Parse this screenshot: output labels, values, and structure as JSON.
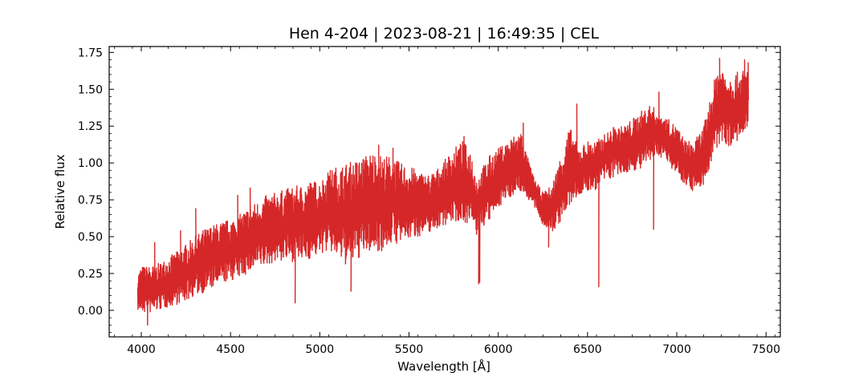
{
  "chart_data": {
    "type": "line",
    "title": "Hen 4-204 | 2023-08-21 | 16:49:35 | CEL",
    "xlabel": "Wavelength [Å]",
    "ylabel": "Relative flux",
    "xlim": [
      3820,
      7580
    ],
    "ylim": [
      -0.18,
      1.79
    ],
    "xticks": [
      4000,
      4500,
      5000,
      5500,
      6000,
      6500,
      7000,
      7500
    ],
    "yticks": [
      0.0,
      0.25,
      0.5,
      0.75,
      1.0,
      1.25,
      1.5,
      1.75
    ],
    "xtick_labels": [
      "4000",
      "4500",
      "5000",
      "5500",
      "6000",
      "6500",
      "7000",
      "7500"
    ],
    "ytick_labels": [
      "0.00",
      "0.25",
      "0.50",
      "0.75",
      "1.00",
      "1.25",
      "1.50",
      "1.75"
    ],
    "grid": false,
    "line_color": "#d62728",
    "series": [
      {
        "x": [
          3980,
          4000,
          4050,
          4100,
          4150,
          4200,
          4250,
          4300,
          4350,
          4400,
          4450,
          4500,
          4550,
          4600,
          4650,
          4700,
          4750,
          4800,
          4850,
          4900,
          4950,
          5000,
          5050,
          5100,
          5150,
          5200,
          5250,
          5300,
          5350,
          5400,
          5450,
          5500,
          5550,
          5600,
          5650,
          5700,
          5750,
          5800,
          5850,
          5880,
          5900,
          5950,
          6000,
          6050,
          6100,
          6130,
          6150,
          6200,
          6250,
          6300,
          6350,
          6400,
          6450,
          6500,
          6550,
          6600,
          6650,
          6700,
          6750,
          6800,
          6850,
          6900,
          6950,
          7000,
          7050,
          7100,
          7150,
          7200,
          7230,
          7260,
          7300,
          7350,
          7400
        ],
        "low": [
          0.0,
          -0.02,
          -0.02,
          0.0,
          0.02,
          0.04,
          0.06,
          0.1,
          0.12,
          0.15,
          0.18,
          0.2,
          0.22,
          0.25,
          0.28,
          0.3,
          0.33,
          0.33,
          0.33,
          0.33,
          0.35,
          0.38,
          0.4,
          0.35,
          0.3,
          0.33,
          0.38,
          0.4,
          0.4,
          0.45,
          0.45,
          0.48,
          0.5,
          0.52,
          0.55,
          0.58,
          0.6,
          0.6,
          0.58,
          0.5,
          0.55,
          0.6,
          0.7,
          0.75,
          0.8,
          0.8,
          0.78,
          0.7,
          0.58,
          0.52,
          0.6,
          0.7,
          0.78,
          0.8,
          0.82,
          0.88,
          0.9,
          0.92,
          0.95,
          0.95,
          1.0,
          1.05,
          1.0,
          0.92,
          0.85,
          0.8,
          0.85,
          1.0,
          1.1,
          1.15,
          1.1,
          1.15,
          1.2
        ],
        "high": [
          0.25,
          0.3,
          0.3,
          0.32,
          0.36,
          0.4,
          0.45,
          0.5,
          0.55,
          0.58,
          0.6,
          0.62,
          0.65,
          0.7,
          0.74,
          0.78,
          0.8,
          0.82,
          0.84,
          0.85,
          0.88,
          0.88,
          0.95,
          0.98,
          1.0,
          1.02,
          1.05,
          1.08,
          1.05,
          1.05,
          1.0,
          0.98,
          0.95,
          0.92,
          0.95,
          1.02,
          1.1,
          1.15,
          1.08,
          0.9,
          0.95,
          1.05,
          1.1,
          1.15,
          1.2,
          1.22,
          1.1,
          0.9,
          0.8,
          0.85,
          1.05,
          1.25,
          1.1,
          1.15,
          1.15,
          1.2,
          1.25,
          1.25,
          1.3,
          1.35,
          1.4,
          1.35,
          1.3,
          1.25,
          1.15,
          1.15,
          1.25,
          1.5,
          1.68,
          1.65,
          1.6,
          1.62,
          1.65
        ]
      }
    ],
    "spikes": [
      {
        "x": 4035,
        "y": -0.1
      },
      {
        "x": 4075,
        "y": 0.46
      },
      {
        "x": 4220,
        "y": 0.54
      },
      {
        "x": 4305,
        "y": 0.69
      },
      {
        "x": 4540,
        "y": 0.78
      },
      {
        "x": 4610,
        "y": 0.83
      },
      {
        "x": 4862,
        "y": 0.05
      },
      {
        "x": 5052,
        "y": 0.91
      },
      {
        "x": 5175,
        "y": 0.13
      },
      {
        "x": 5270,
        "y": 0.98
      },
      {
        "x": 5330,
        "y": 1.12
      },
      {
        "x": 5410,
        "y": 1.1
      },
      {
        "x": 5808,
        "y": 1.18
      },
      {
        "x": 5890,
        "y": 0.18
      },
      {
        "x": 5896,
        "y": 0.19
      },
      {
        "x": 6140,
        "y": 1.27
      },
      {
        "x": 6282,
        "y": 0.43
      },
      {
        "x": 6440,
        "y": 1.4
      },
      {
        "x": 6563,
        "y": 0.16
      },
      {
        "x": 6870,
        "y": 0.55
      },
      {
        "x": 6900,
        "y": 1.48
      },
      {
        "x": 7240,
        "y": 1.71
      },
      {
        "x": 7380,
        "y": 1.7
      },
      {
        "x": 7400,
        "y": 1.68
      }
    ]
  }
}
